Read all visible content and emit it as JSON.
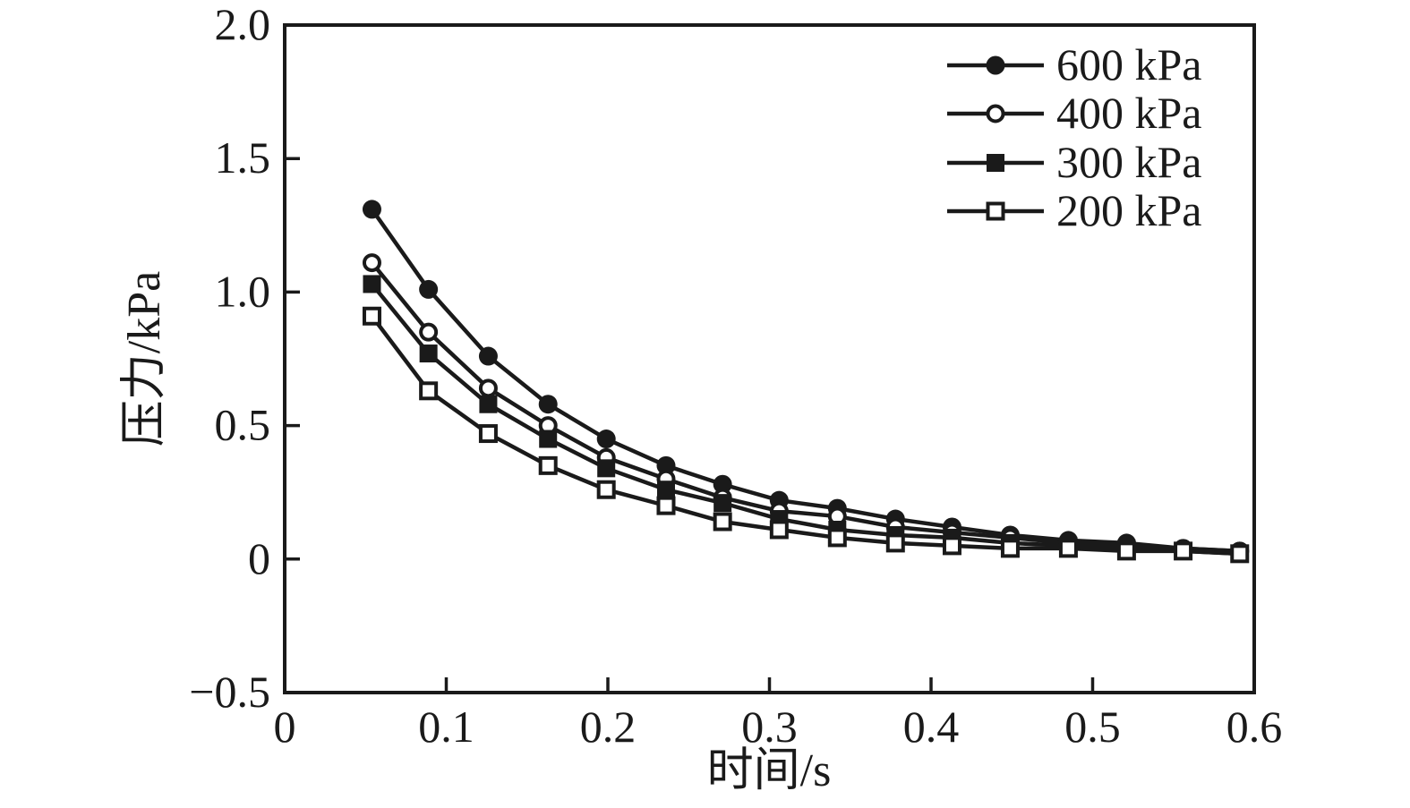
{
  "figure": {
    "background": "#ffffff",
    "ink": "#1a1a1a",
    "open_marker_fill": "#ffffff"
  },
  "chart_data": {
    "type": "line",
    "title": "",
    "xlabel": "时间/s",
    "ylabel": "压力/kPa",
    "xlim": [
      0,
      0.6
    ],
    "ylim": [
      -0.5,
      2.0
    ],
    "grid": false,
    "legend_position": "top-right",
    "x_ticks": [
      0,
      0.1,
      0.2,
      0.3,
      0.4,
      0.5,
      0.6
    ],
    "x_tick_labels": [
      "0",
      "0.1",
      "0.2",
      "0.3",
      "0.4",
      "0.5",
      "0.6"
    ],
    "y_ticks": [
      -0.5,
      0,
      0.5,
      1.0,
      1.5,
      2.0
    ],
    "y_tick_labels": [
      "−0.5",
      "0",
      "0.5",
      "1.0",
      "1.5",
      "2.0"
    ],
    "x": [
      0.054,
      0.089,
      0.126,
      0.163,
      0.199,
      0.236,
      0.271,
      0.306,
      0.342,
      0.378,
      0.413,
      0.449,
      0.485,
      0.521,
      0.556,
      0.591
    ],
    "series": [
      {
        "name": "600 kPa",
        "marker": "filled-circle",
        "values": [
          1.31,
          1.01,
          0.76,
          0.58,
          0.45,
          0.35,
          0.28,
          0.22,
          0.19,
          0.15,
          0.12,
          0.09,
          0.07,
          0.06,
          0.04,
          0.03
        ]
      },
      {
        "name": "400 kPa",
        "marker": "open-circle",
        "values": [
          1.11,
          0.85,
          0.64,
          0.5,
          0.38,
          0.3,
          0.23,
          0.18,
          0.16,
          0.12,
          0.1,
          0.08,
          0.06,
          0.05,
          0.04,
          0.03
        ]
      },
      {
        "name": "300 kPa",
        "marker": "filled-square",
        "values": [
          1.03,
          0.77,
          0.58,
          0.45,
          0.34,
          0.26,
          0.21,
          0.15,
          0.11,
          0.09,
          0.08,
          0.06,
          0.05,
          0.04,
          0.03,
          0.02
        ]
      },
      {
        "name": "200 kPa",
        "marker": "open-square",
        "values": [
          0.91,
          0.63,
          0.47,
          0.35,
          0.26,
          0.2,
          0.14,
          0.11,
          0.08,
          0.06,
          0.05,
          0.04,
          0.04,
          0.03,
          0.03,
          0.02
        ]
      }
    ]
  }
}
